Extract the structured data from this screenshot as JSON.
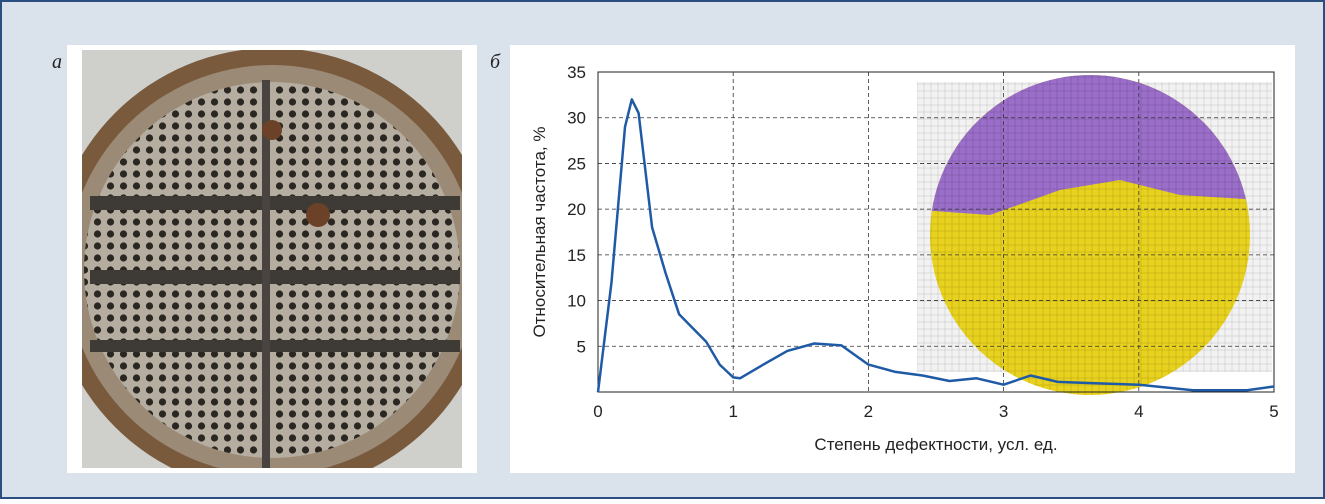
{
  "panel_labels": [
    "а",
    "б"
  ],
  "chart_data": {
    "type": "line",
    "xlabel": "Степень дефектности, усл. ед.",
    "ylabel": "Относительная частота, %",
    "x": [
      0,
      0.1,
      0.2,
      0.25,
      0.3,
      0.4,
      0.5,
      0.6,
      0.7,
      0.8,
      0.9,
      1.0,
      1.05,
      1.2,
      1.4,
      1.6,
      1.8,
      2.0,
      2.2,
      2.4,
      2.6,
      2.8,
      3.0,
      3.2,
      3.4,
      3.6,
      4.0,
      4.4,
      4.8,
      5.0
    ],
    "values": [
      0,
      12,
      29,
      32,
      30.5,
      18,
      13,
      8.5,
      7,
      5.5,
      3,
      1.6,
      1.5,
      2.8,
      4.5,
      5.3,
      5.1,
      3,
      2.2,
      1.8,
      1.2,
      1.5,
      0.8,
      1.8,
      1.1,
      1,
      0.8,
      0.2,
      0.2,
      0.6
    ],
    "color": "#1f5aa6",
    "xlim": [
      0,
      5
    ],
    "xticks": [
      0,
      1,
      2,
      3,
      4,
      5
    ],
    "ylim": [
      0,
      35
    ],
    "yticks": [
      5,
      10,
      15,
      20,
      25,
      30,
      35
    ],
    "grid": true
  }
}
